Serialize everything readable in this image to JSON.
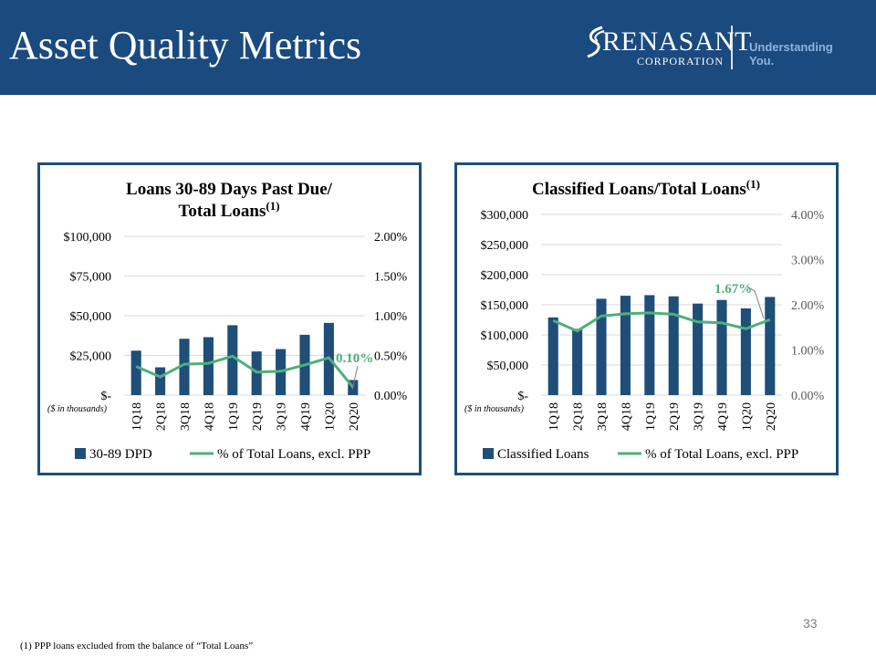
{
  "header": {
    "title": "Asset Quality Metrics",
    "logo_name": "RENASANT",
    "logo_sub": "CORPORATION",
    "tagline": "Understanding You."
  },
  "colors": {
    "header_bg": "#1a4a7e",
    "bar": "#1f4e79",
    "line": "#4eb07a",
    "frame": "#1f4e79"
  },
  "chart_data": [
    {
      "type": "bar",
      "title_line1": "Loans 30-89 Days Past Due/",
      "title_line2": "Total Loans",
      "title_sup": "(1)",
      "categories": [
        "1Q18",
        "2Q18",
        "3Q18",
        "4Q18",
        "1Q19",
        "2Q19",
        "3Q19",
        "4Q19",
        "1Q20",
        "2Q20"
      ],
      "series": [
        {
          "name": "30-89 DPD",
          "type": "bar",
          "axis": "left",
          "values": [
            28000,
            17500,
            35500,
            36500,
            44000,
            27500,
            29000,
            38000,
            45500,
            9500
          ]
        },
        {
          "name": "% of Total Loans, excl. PPP",
          "type": "line",
          "axis": "right",
          "values": [
            0.36,
            0.23,
            0.39,
            0.4,
            0.49,
            0.29,
            0.3,
            0.38,
            0.47,
            0.1
          ]
        }
      ],
      "y_left_ticks": [
        "$100,000",
        "$75,000",
        "$50,000",
        "$25,000",
        "$-"
      ],
      "y_right_ticks": [
        "2.00%",
        "1.50%",
        "1.00%",
        "0.50%",
        "0.00%"
      ],
      "ylim_left": [
        0,
        100000
      ],
      "ylim_right": [
        0,
        2.0
      ],
      "annotation": "0.10%",
      "unit_note": "($ in thousands)",
      "grid": true,
      "legend_position": "bottom"
    },
    {
      "type": "bar",
      "title_line1": "Classified Loans/Total Loans",
      "title_line2": "",
      "title_sup": "(1)",
      "categories": [
        "1Q18",
        "2Q18",
        "3Q18",
        "4Q18",
        "1Q19",
        "2Q19",
        "3Q19",
        "4Q19",
        "1Q20",
        "2Q20"
      ],
      "series": [
        {
          "name": "Classified Loans",
          "type": "bar",
          "axis": "left",
          "values": [
            129000,
            110000,
            160000,
            165000,
            166000,
            164000,
            152000,
            158000,
            144000,
            163000
          ]
        },
        {
          "name": "% of Total Loans, excl. PPP",
          "type": "line",
          "axis": "right",
          "values": [
            1.65,
            1.42,
            1.75,
            1.8,
            1.82,
            1.79,
            1.62,
            1.6,
            1.47,
            1.67
          ]
        }
      ],
      "y_left_ticks": [
        "$300,000",
        "$250,000",
        "$200,000",
        "$150,000",
        "$100,000",
        "$50,000",
        "$-"
      ],
      "y_right_ticks": [
        "4.00%",
        "3.00%",
        "2.00%",
        "1.00%",
        "0.00%"
      ],
      "ylim_left": [
        0,
        300000
      ],
      "ylim_right": [
        0,
        4.0
      ],
      "annotation": "1.67%",
      "unit_note": "($ in thousands)",
      "grid": true,
      "legend_position": "bottom"
    }
  ],
  "footer": {
    "page_number": "33",
    "footnote": "(1)  PPP loans excluded from the balance of “Total Loans”"
  }
}
